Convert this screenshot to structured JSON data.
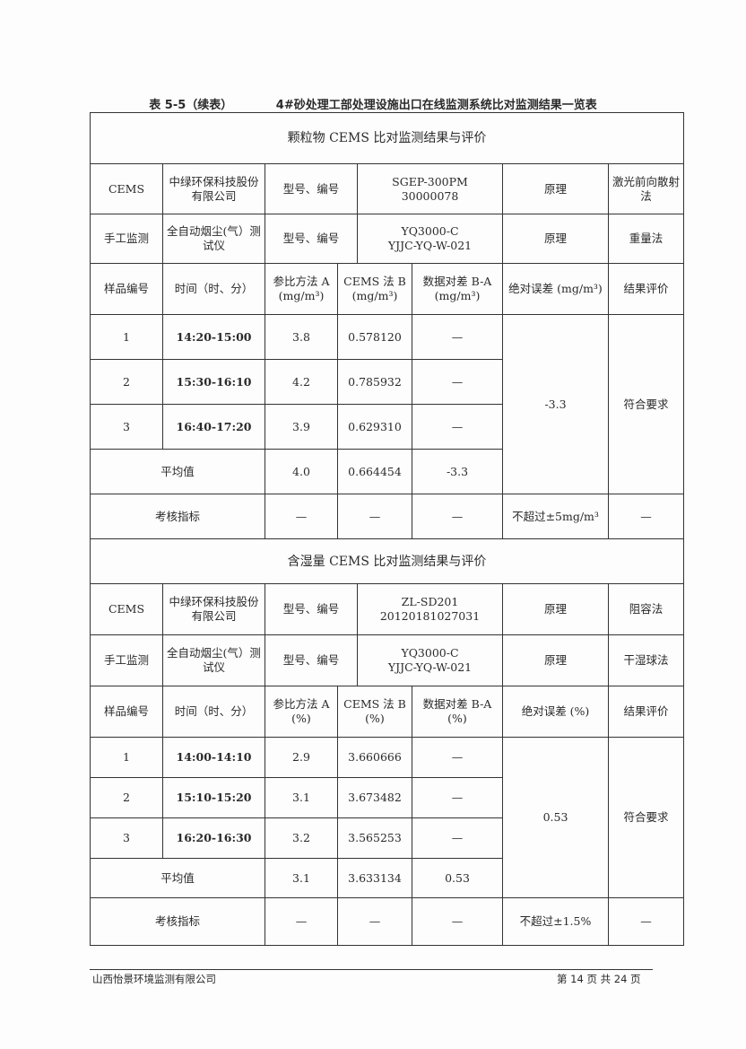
{
  "caption": {
    "table_no": "表 5-5（续表）",
    "title": "4#砂处理工部处理设施出口在线监测系统比对监测结果一览表"
  },
  "sections": [
    {
      "title": "颗粒物 CEMS 比对监测结果与评价",
      "cems": {
        "label": "CEMS",
        "maker": "中绿环保科技股份有限公司",
        "model_label": "型号、编号",
        "model": "SGEP-300PM",
        "serial": "30000078",
        "principle_label": "原理",
        "principle": "激光前向散射法"
      },
      "manual": {
        "label": "手工监测",
        "maker": "全自动烟尘(气）测试仪",
        "model_label": "型号、编号",
        "model": "YQ3000-C",
        "serial": "YJJC-YQ-W-021",
        "principle_label": "原理",
        "principle": "重量法"
      },
      "headers": [
        "样品编号",
        "时间（时、分）",
        "参比方法 A (mg/m³)",
        "CEMS 法 B (mg/m³)",
        "数据对差 B-A (mg/m³)",
        "绝对误差 (mg/m³)",
        "结果评价"
      ],
      "rows": [
        [
          "1",
          "14:20-15:00",
          "3.8",
          "0.578120",
          "—"
        ],
        [
          "2",
          "15:30-16:10",
          "4.2",
          "0.785932",
          "—"
        ],
        [
          "3",
          "16:40-17:20",
          "3.9",
          "0.629310",
          "—"
        ]
      ],
      "abs_error": "-3.3",
      "evaluation": "符合要求",
      "average": {
        "label": "平均值",
        "a": "4.0",
        "b": "0.664454",
        "diff": "-3.3"
      },
      "criteria": {
        "label": "考核指标",
        "a": "—",
        "b": "—",
        "diff": "—",
        "abs": "不超过±5mg/m³",
        "eval": "—"
      }
    },
    {
      "title": "含湿量 CEMS 比对监测结果与评价",
      "cems": {
        "label": "CEMS",
        "maker": "中绿环保科技股份有限公司",
        "model_label": "型号、编号",
        "model": "ZL-SD201",
        "serial": "20120181027031",
        "principle_label": "原理",
        "principle": "阻容法"
      },
      "manual": {
        "label": "手工监测",
        "maker": "全自动烟尘(气）测试仪",
        "model_label": "型号、编号",
        "model": "YQ3000-C",
        "serial": "YJJC-YQ-W-021",
        "principle_label": "原理",
        "principle": "干湿球法"
      },
      "headers": [
        "样品编号",
        "时间（时、分）",
        "参比方法 A (%)",
        "CEMS 法 B (%)",
        "数据对差 B-A (%)",
        "绝对误差 (%)",
        "结果评价"
      ],
      "rows": [
        [
          "1",
          "14:00-14:10",
          "2.9",
          "3.660666",
          "—"
        ],
        [
          "2",
          "15:10-15:20",
          "3.1",
          "3.673482",
          "—"
        ],
        [
          "3",
          "16:20-16:30",
          "3.2",
          "3.565253",
          "—"
        ]
      ],
      "abs_error": "0.53",
      "evaluation": "符合要求",
      "average": {
        "label": "平均值",
        "a": "3.1",
        "b": "3.633134",
        "diff": "0.53"
      },
      "criteria": {
        "label": "考核指标",
        "a": "—",
        "b": "—",
        "diff": "—",
        "abs": "不超过±1.5%",
        "eval": "—"
      }
    }
  ],
  "footer": {
    "company": "山西怡景环境监测有限公司",
    "page": "第 14 页 共 24 页"
  }
}
